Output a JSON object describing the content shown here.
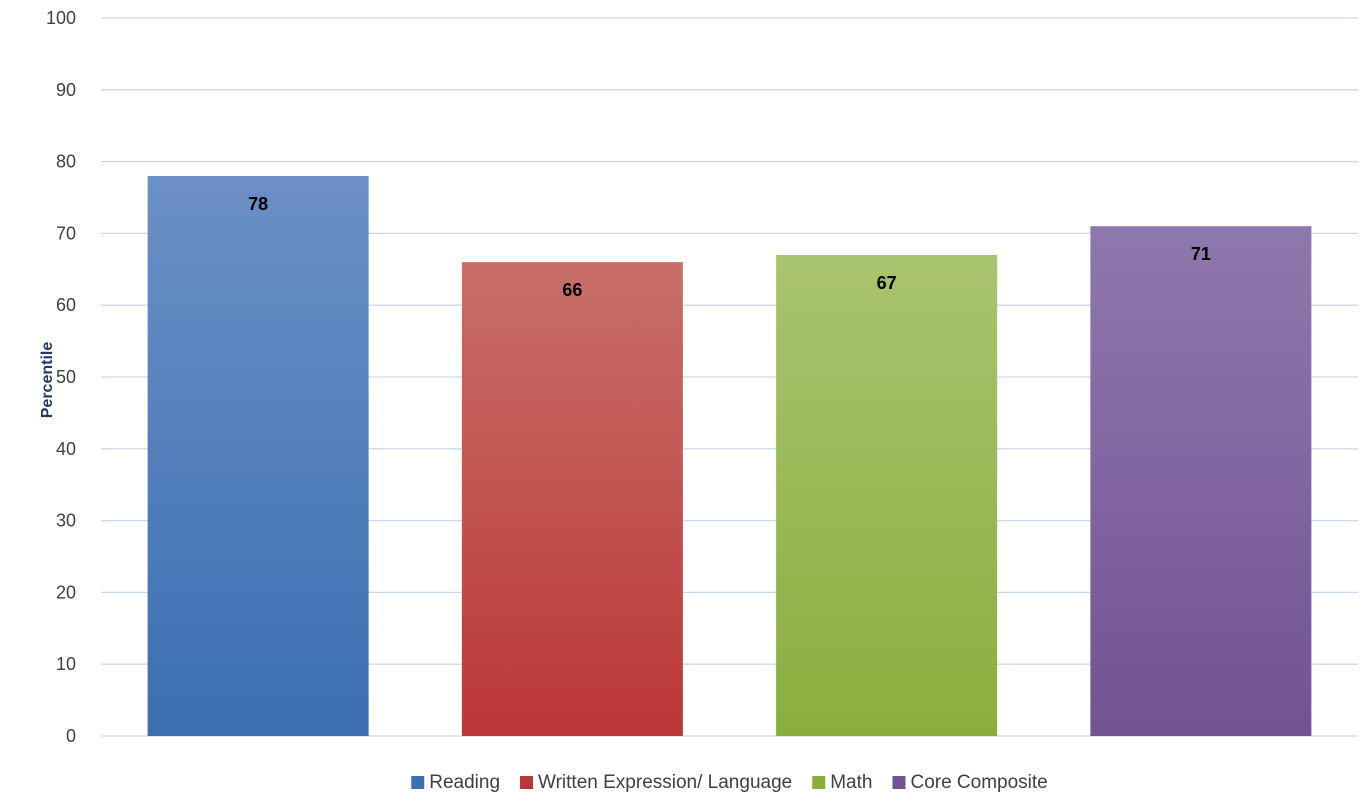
{
  "chart_data": {
    "type": "bar",
    "title": "",
    "xlabel": "",
    "ylabel": "Percentile",
    "ylim": [
      0,
      100
    ],
    "yticks": [
      0,
      10,
      20,
      30,
      40,
      50,
      60,
      70,
      80,
      90,
      100
    ],
    "grid": true,
    "legend_position": "bottom",
    "categories": [
      "Reading",
      "Written Expression/ Language",
      "Math",
      "Core Composite"
    ],
    "values": [
      78,
      66,
      67,
      71
    ],
    "colors": [
      {
        "top": "#6b90c6",
        "bottom": "#3b6fb2"
      },
      {
        "top": "#c86f69",
        "bottom": "#bb3736"
      },
      {
        "top": "#a9c46e",
        "bottom": "#8aae3e"
      },
      {
        "top": "#8f78ad",
        "bottom": "#735293"
      }
    ],
    "legend": [
      "Reading",
      "Written Expression/ Language",
      "Math",
      "Core Composite"
    ]
  }
}
